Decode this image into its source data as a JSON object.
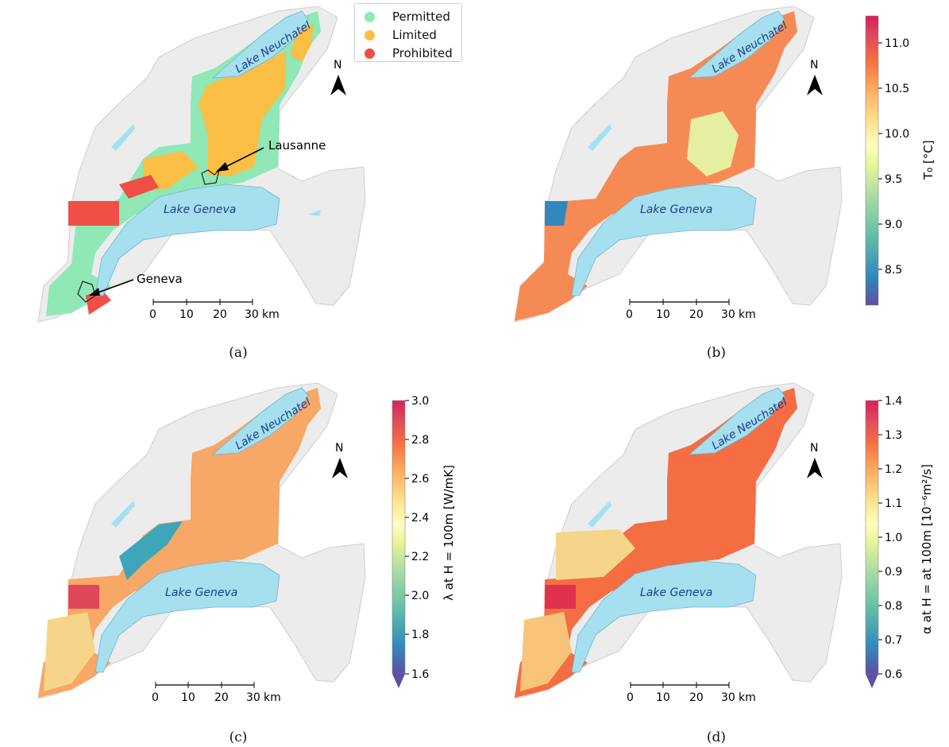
{
  "panels": [
    {
      "caption": "(a)",
      "scale": [
        "0",
        "10",
        "20",
        "30"
      ],
      "unit": "km",
      "lakes": [
        "Lake Neuchatel",
        "Lake Geneva"
      ],
      "north": "N"
    },
    {
      "caption": "(b)",
      "scale": [
        "0",
        "10",
        "20",
        "30"
      ],
      "unit": "km",
      "lakes": [
        "Lake Neuchatel",
        "Lake Geneva"
      ],
      "north": "N"
    },
    {
      "caption": "(c)",
      "scale": [
        "0",
        "10",
        "20",
        "30"
      ],
      "unit": "km",
      "lakes": [
        "Lake Neuchatel",
        "Lake Geneva"
      ],
      "north": "N"
    },
    {
      "caption": "(d)",
      "scale": [
        "0",
        "10",
        "20",
        "30"
      ],
      "unit": "km",
      "lakes": [
        "Lake Neuchatel",
        "Lake Geneva"
      ],
      "north": "N"
    }
  ],
  "legend": {
    "items": [
      {
        "label": "Permitted",
        "color": "#8fe8b5"
      },
      {
        "label": "Limited",
        "color": "#fbbf45"
      },
      {
        "label": "Prohibited",
        "color": "#ef4f45"
      }
    ]
  },
  "cities": {
    "lausanne": "Lausanne",
    "geneva": "Geneva"
  },
  "colorbars": {
    "b": {
      "label": "T₀ [°C]",
      "ticks": [
        "11.0",
        "10.5",
        "10.0",
        "9.5",
        "9.0",
        "8.5"
      ],
      "range": [
        8.1,
        11.3
      ]
    },
    "c": {
      "label": "λ at H = 100m [W/mK]",
      "ticks": [
        "3.0",
        "2.8",
        "2.6",
        "2.4",
        "2.2",
        "2.0",
        "1.8",
        "1.6"
      ],
      "range": [
        1.6,
        3.0
      ]
    },
    "d": {
      "label": "α at H = at 100m [10⁻⁶m²/s]",
      "ticks": [
        "1.4",
        "1.3",
        "1.2",
        "1.1",
        "1.0",
        "0.9",
        "0.8",
        "0.7",
        "0.6"
      ],
      "range": [
        0.6,
        1.4
      ]
    }
  },
  "colors": {
    "background_land": "#ececec",
    "lake": "#a6e0ee",
    "lake_label": "#1a3b8f",
    "spectral": [
      "#5e4fa2",
      "#3288bd",
      "#66c2a5",
      "#abdda4",
      "#e6f598",
      "#ffffbf",
      "#fee08b",
      "#fdae61",
      "#f46d43",
      "#d53e4f",
      "#c2185b"
    ]
  }
}
